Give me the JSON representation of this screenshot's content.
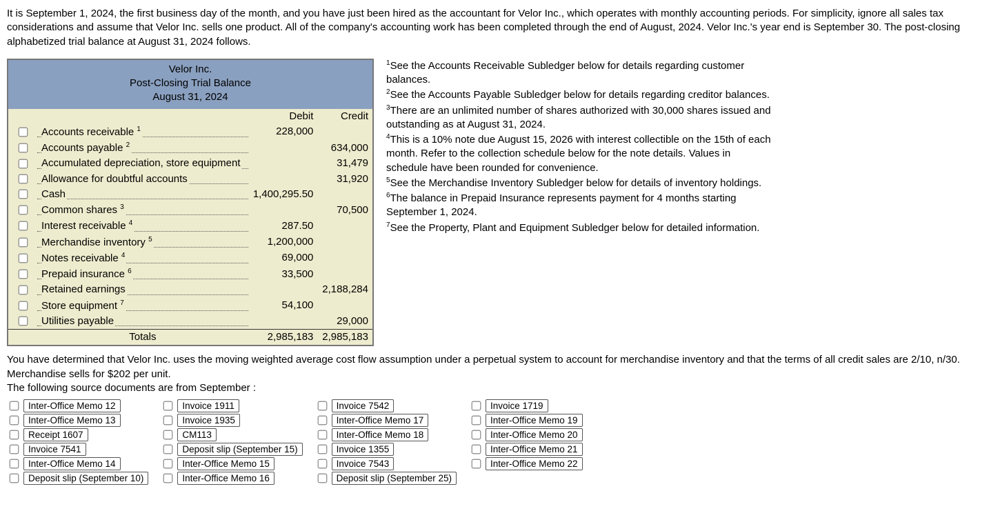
{
  "intro": "It is September 1, 2024, the first business day of the month, and you have just been hired as the accountant for Velor Inc., which operates with monthly accounting periods. For simplicity, ignore all sales tax considerations and assume that Velor Inc. sells one product. All of the company's accounting work has been completed through the end of August, 2024. Velor Inc.'s year end is September 30. The post-closing alphabetized trial balance at August 31, 2024 follows.",
  "tb": {
    "company": "Velor Inc.",
    "title": "Post-Closing Trial Balance",
    "date": "August 31, 2024",
    "colDebit": "Debit",
    "colCredit": "Credit",
    "rows": [
      {
        "name": "Accounts receivable",
        "sup": "1",
        "debit": "228,000",
        "credit": ""
      },
      {
        "name": "Accounts payable",
        "sup": "2",
        "debit": "",
        "credit": "634,000"
      },
      {
        "name": "Accumulated depreciation, store equipment",
        "sup": "",
        "debit": "",
        "credit": "31,479"
      },
      {
        "name": "Allowance for doubtful accounts",
        "sup": "",
        "debit": "",
        "credit": "31,920"
      },
      {
        "name": "Cash",
        "sup": "",
        "debit": "1,400,295.50",
        "credit": ""
      },
      {
        "name": "Common shares",
        "sup": "3",
        "debit": "",
        "credit": "70,500"
      },
      {
        "name": "Interest receivable",
        "sup": "4",
        "debit": "287.50",
        "credit": ""
      },
      {
        "name": "Merchandise inventory",
        "sup": "5",
        "debit": "1,200,000",
        "credit": ""
      },
      {
        "name": "Notes receivable",
        "sup": "4",
        "debit": "69,000",
        "credit": ""
      },
      {
        "name": "Prepaid insurance",
        "sup": "6",
        "debit": "33,500",
        "credit": ""
      },
      {
        "name": "Retained earnings",
        "sup": "",
        "debit": "",
        "credit": "2,188,284"
      },
      {
        "name": "Store equipment",
        "sup": "7",
        "debit": "54,100",
        "credit": ""
      },
      {
        "name": "Utilities payable",
        "sup": "",
        "debit": "",
        "credit": "29,000"
      }
    ],
    "totalsLabel": "Totals",
    "totalDebit": "2,985,183",
    "totalCredit": "2,985,183"
  },
  "notes": [
    {
      "sup": "1",
      "text": "See the Accounts Receivable Subledger below for details regarding customer balances."
    },
    {
      "sup": "2",
      "text": "See the Accounts Payable Subledger below for details regarding creditor balances."
    },
    {
      "sup": "3",
      "text": "There are an unlimited number of shares authorized with 30,000 shares issued and outstanding as at August 31, 2024."
    },
    {
      "sup": "4",
      "text": "This is a 10% note due August 15, 2026 with interest collectible on the 15th of each month. Refer to the collection schedule below for the note details. Values in schedule have been rounded for convenience."
    },
    {
      "sup": "5",
      "text": "See the Merchandise Inventory Subledger below for details of inventory holdings."
    },
    {
      "sup": "6",
      "text": "The balance in Prepaid Insurance represents payment for 4 months starting September 1, 2024."
    },
    {
      "sup": "7",
      "text": "See the Property, Plant and Equipment Subledger below for detailed information."
    }
  ],
  "para2_l1": "You have determined that Velor Inc. uses the moving weighted average cost flow assumption under a perpetual system to account for merchandise inventory and that the terms of all credit sales are 2/10, n/30. Merchandise sells for $202 per unit.",
  "para2_l2": "The following source documents are from September :",
  "docs": {
    "col0": [
      "Inter-Office Memo 12",
      "Inter-Office Memo 13",
      "Receipt 1607",
      "Invoice 7541",
      "Inter-Office Memo 14",
      "Deposit slip (September 10)"
    ],
    "col1": [
      "Invoice 1911",
      "Invoice 1935",
      "CM113",
      "Deposit slip (September 15)",
      "Inter-Office Memo 15",
      "Inter-Office Memo 16"
    ],
    "col2": [
      "Invoice 7542",
      "Inter-Office Memo 17",
      "Inter-Office Memo 18",
      "Invoice 1355",
      "Invoice 7543",
      "Deposit slip (September 25)"
    ],
    "col3": [
      "Invoice 1719",
      "Inter-Office Memo 19",
      "Inter-Office Memo 20",
      "Inter-Office Memo 21",
      "Inter-Office Memo 22"
    ]
  }
}
